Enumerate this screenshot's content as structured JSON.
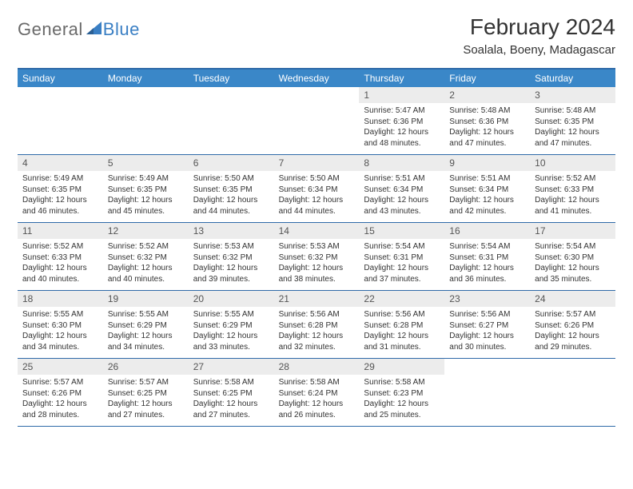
{
  "logo": {
    "general": "General",
    "blue": "Blue"
  },
  "month_title": "February 2024",
  "location": "Soalala, Boeny, Madagascar",
  "colors": {
    "header_bg": "#3a87c8",
    "border": "#2f6aa8",
    "daynum_bg": "#ececec",
    "logo_gray": "#6a6a6a",
    "logo_blue": "#3a7fc4"
  },
  "weekdays": [
    "Sunday",
    "Monday",
    "Tuesday",
    "Wednesday",
    "Thursday",
    "Friday",
    "Saturday"
  ],
  "weeks": [
    [
      null,
      null,
      null,
      null,
      {
        "num": "1",
        "sunrise": "5:47 AM",
        "sunset": "6:36 PM",
        "daylight": "12 hours and 48 minutes."
      },
      {
        "num": "2",
        "sunrise": "5:48 AM",
        "sunset": "6:36 PM",
        "daylight": "12 hours and 47 minutes."
      },
      {
        "num": "3",
        "sunrise": "5:48 AM",
        "sunset": "6:35 PM",
        "daylight": "12 hours and 47 minutes."
      }
    ],
    [
      {
        "num": "4",
        "sunrise": "5:49 AM",
        "sunset": "6:35 PM",
        "daylight": "12 hours and 46 minutes."
      },
      {
        "num": "5",
        "sunrise": "5:49 AM",
        "sunset": "6:35 PM",
        "daylight": "12 hours and 45 minutes."
      },
      {
        "num": "6",
        "sunrise": "5:50 AM",
        "sunset": "6:35 PM",
        "daylight": "12 hours and 44 minutes."
      },
      {
        "num": "7",
        "sunrise": "5:50 AM",
        "sunset": "6:34 PM",
        "daylight": "12 hours and 44 minutes."
      },
      {
        "num": "8",
        "sunrise": "5:51 AM",
        "sunset": "6:34 PM",
        "daylight": "12 hours and 43 minutes."
      },
      {
        "num": "9",
        "sunrise": "5:51 AM",
        "sunset": "6:34 PM",
        "daylight": "12 hours and 42 minutes."
      },
      {
        "num": "10",
        "sunrise": "5:52 AM",
        "sunset": "6:33 PM",
        "daylight": "12 hours and 41 minutes."
      }
    ],
    [
      {
        "num": "11",
        "sunrise": "5:52 AM",
        "sunset": "6:33 PM",
        "daylight": "12 hours and 40 minutes."
      },
      {
        "num": "12",
        "sunrise": "5:52 AM",
        "sunset": "6:32 PM",
        "daylight": "12 hours and 40 minutes."
      },
      {
        "num": "13",
        "sunrise": "5:53 AM",
        "sunset": "6:32 PM",
        "daylight": "12 hours and 39 minutes."
      },
      {
        "num": "14",
        "sunrise": "5:53 AM",
        "sunset": "6:32 PM",
        "daylight": "12 hours and 38 minutes."
      },
      {
        "num": "15",
        "sunrise": "5:54 AM",
        "sunset": "6:31 PM",
        "daylight": "12 hours and 37 minutes."
      },
      {
        "num": "16",
        "sunrise": "5:54 AM",
        "sunset": "6:31 PM",
        "daylight": "12 hours and 36 minutes."
      },
      {
        "num": "17",
        "sunrise": "5:54 AM",
        "sunset": "6:30 PM",
        "daylight": "12 hours and 35 minutes."
      }
    ],
    [
      {
        "num": "18",
        "sunrise": "5:55 AM",
        "sunset": "6:30 PM",
        "daylight": "12 hours and 34 minutes."
      },
      {
        "num": "19",
        "sunrise": "5:55 AM",
        "sunset": "6:29 PM",
        "daylight": "12 hours and 34 minutes."
      },
      {
        "num": "20",
        "sunrise": "5:55 AM",
        "sunset": "6:29 PM",
        "daylight": "12 hours and 33 minutes."
      },
      {
        "num": "21",
        "sunrise": "5:56 AM",
        "sunset": "6:28 PM",
        "daylight": "12 hours and 32 minutes."
      },
      {
        "num": "22",
        "sunrise": "5:56 AM",
        "sunset": "6:28 PM",
        "daylight": "12 hours and 31 minutes."
      },
      {
        "num": "23",
        "sunrise": "5:56 AM",
        "sunset": "6:27 PM",
        "daylight": "12 hours and 30 minutes."
      },
      {
        "num": "24",
        "sunrise": "5:57 AM",
        "sunset": "6:26 PM",
        "daylight": "12 hours and 29 minutes."
      }
    ],
    [
      {
        "num": "25",
        "sunrise": "5:57 AM",
        "sunset": "6:26 PM",
        "daylight": "12 hours and 28 minutes."
      },
      {
        "num": "26",
        "sunrise": "5:57 AM",
        "sunset": "6:25 PM",
        "daylight": "12 hours and 27 minutes."
      },
      {
        "num": "27",
        "sunrise": "5:58 AM",
        "sunset": "6:25 PM",
        "daylight": "12 hours and 27 minutes."
      },
      {
        "num": "28",
        "sunrise": "5:58 AM",
        "sunset": "6:24 PM",
        "daylight": "12 hours and 26 minutes."
      },
      {
        "num": "29",
        "sunrise": "5:58 AM",
        "sunset": "6:23 PM",
        "daylight": "12 hours and 25 minutes."
      },
      null,
      null
    ]
  ],
  "labels": {
    "sunrise": "Sunrise:",
    "sunset": "Sunset:",
    "daylight": "Daylight:"
  }
}
